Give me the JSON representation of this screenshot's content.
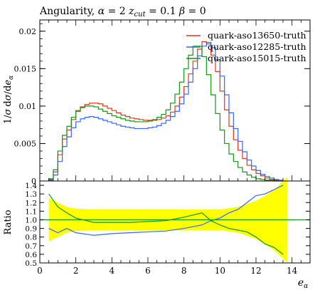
{
  "chart_data": [
    {
      "type": "line",
      "title": "Angularity, α = 2 z_cut = 0.1 β = 0",
      "title_parts": {
        "lead": "Angularity, ",
        "alpha_sym": "α",
        "alpha_eq": " = 2 ",
        "z": "z",
        "cut": "cut",
        "zcut_eq": " = 0.1 ",
        "beta_sym": "β",
        "beta_eq": " = 0"
      },
      "ylabel": "1/σ dσ/de_α",
      "ylabel_parts": {
        "a": "1",
        "b": "/",
        "c": "σ",
        "d": "d",
        "e": "σ",
        "f": "/",
        "g": "d",
        "h": "e",
        "sub": "α"
      },
      "xlim": [
        0,
        15
      ],
      "ylim": [
        0,
        0.0215
      ],
      "yticks": [
        0,
        0.005,
        0.01,
        0.015,
        0.02
      ],
      "ytick_labels": [
        "0",
        "0.005",
        "0.01",
        "0.015",
        "0.02"
      ],
      "legend_position": "top-right",
      "series": [
        {
          "name": "quark-aso13650-truth",
          "color": "#ee3311",
          "bin_width": 0.25,
          "x_start": 0.5,
          "values": [
            0.0002,
            0.0012,
            0.0035,
            0.0056,
            0.0068,
            0.0082,
            0.0093,
            0.0099,
            0.0102,
            0.0104,
            0.0104,
            0.0103,
            0.01,
            0.0097,
            0.0094,
            0.0091,
            0.0088,
            0.0086,
            0.0084,
            0.0083,
            0.0082,
            0.0081,
            0.0081,
            0.0081,
            0.0082,
            0.0084,
            0.0087,
            0.0092,
            0.01,
            0.0112,
            0.0126,
            0.0143,
            0.016,
            0.0176,
            0.0186,
            0.0183,
            0.0168,
            0.0146,
            0.012,
            0.0095,
            0.0073,
            0.0055,
            0.0041,
            0.003,
            0.0021,
            0.0015,
            0.001,
            0.0007,
            0.0004,
            0.0002,
            0.0001,
            0.0001
          ]
        },
        {
          "name": "quark-aso12285-truth",
          "color": "#3366ff",
          "bin_width": 0.25,
          "x_start": 0.5,
          "values": [
            0.0001,
            0.0008,
            0.0026,
            0.0046,
            0.0059,
            0.0071,
            0.0079,
            0.0083,
            0.0085,
            0.0086,
            0.0085,
            0.0083,
            0.0081,
            0.0079,
            0.0077,
            0.0075,
            0.0073,
            0.0072,
            0.0071,
            0.007,
            0.007,
            0.007,
            0.0071,
            0.0072,
            0.0074,
            0.0077,
            0.0081,
            0.0086,
            0.0093,
            0.0103,
            0.0116,
            0.0132,
            0.015,
            0.0167,
            0.018,
            0.0185,
            0.0178,
            0.0162,
            0.014,
            0.0115,
            0.0091,
            0.007,
            0.0053,
            0.0039,
            0.0028,
            0.002,
            0.0014,
            0.0009,
            0.0006,
            0.0004,
            0.0002,
            0.0001
          ]
        },
        {
          "name": "quark-aso15015-truth",
          "color": "#119911",
          "bin_width": 0.25,
          "x_start": 0.5,
          "values": [
            0.0003,
            0.0015,
            0.004,
            0.0061,
            0.0073,
            0.0085,
            0.0094,
            0.0098,
            0.01,
            0.01,
            0.0099,
            0.0096,
            0.0093,
            0.009,
            0.0087,
            0.0085,
            0.0083,
            0.0081,
            0.008,
            0.0079,
            0.0079,
            0.0079,
            0.008,
            0.0082,
            0.0085,
            0.0089,
            0.0095,
            0.0104,
            0.0116,
            0.0132,
            0.015,
            0.0168,
            0.018,
            0.018,
            0.0166,
            0.0142,
            0.0115,
            0.009,
            0.0068,
            0.005,
            0.0036,
            0.0026,
            0.0018,
            0.0012,
            0.0008,
            0.0005,
            0.0003,
            0.0002,
            0.0001,
            0.0001,
            0.0,
            0.0
          ]
        }
      ]
    },
    {
      "type": "line",
      "ylabel": "Ratio",
      "xlabel": "e_α",
      "xlabel_parts": {
        "e": "e",
        "sub": "α"
      },
      "xlim": [
        0,
        15
      ],
      "ylim": [
        0.5,
        1.45
      ],
      "xticks": [
        0,
        2,
        4,
        6,
        8,
        10,
        12,
        14
      ],
      "xtick_labels": [
        "0",
        "2",
        "4",
        "6",
        "8",
        "10",
        "12",
        "14"
      ],
      "yticks": [
        0.5,
        0.6,
        0.7,
        0.8,
        0.9,
        1.0,
        1.1,
        1.2,
        1.3,
        1.4
      ],
      "ytick_labels": [
        "0.5",
        "0.6",
        "0.7",
        "0.8",
        "0.9",
        "1.0",
        "1.1",
        "1.2",
        "1.3",
        "1.4"
      ],
      "reference_line": 1.0,
      "band_color": "#ffff00",
      "band": {
        "x": [
          0.5,
          1,
          1.5,
          2,
          3,
          4,
          5,
          6,
          7,
          8,
          9,
          10,
          11,
          12,
          12.5,
          13,
          13.5,
          13.75
        ],
        "half_width": [
          0.25,
          0.2,
          0.15,
          0.13,
          0.12,
          0.12,
          0.12,
          0.12,
          0.12,
          0.12,
          0.12,
          0.12,
          0.15,
          0.22,
          0.28,
          0.35,
          0.45,
          0.5
        ]
      },
      "series": [
        {
          "color": "#3366ff",
          "x": [
            0.5,
            1,
            1.5,
            2,
            3,
            4,
            5,
            6,
            7,
            8,
            9,
            9.5,
            10,
            10.5,
            11,
            11.5,
            12,
            12.5,
            13,
            13.5
          ],
          "values": [
            0.9,
            0.85,
            0.9,
            0.85,
            0.82,
            0.84,
            0.85,
            0.86,
            0.87,
            0.9,
            0.94,
            0.99,
            1.02,
            1.08,
            1.12,
            1.2,
            1.28,
            1.3,
            1.35,
            1.4
          ]
        },
        {
          "color": "#119911",
          "x": [
            0.5,
            1,
            1.5,
            2,
            3,
            4,
            5,
            6,
            7,
            8,
            9,
            9.5,
            10,
            10.5,
            11,
            11.5,
            12,
            12.5,
            13,
            13.5
          ],
          "values": [
            1.3,
            1.15,
            1.08,
            1.02,
            0.97,
            0.97,
            0.97,
            0.98,
            0.99,
            1.03,
            1.08,
            0.99,
            0.94,
            0.9,
            0.88,
            0.86,
            0.8,
            0.72,
            0.68,
            0.6
          ]
        }
      ]
    }
  ]
}
